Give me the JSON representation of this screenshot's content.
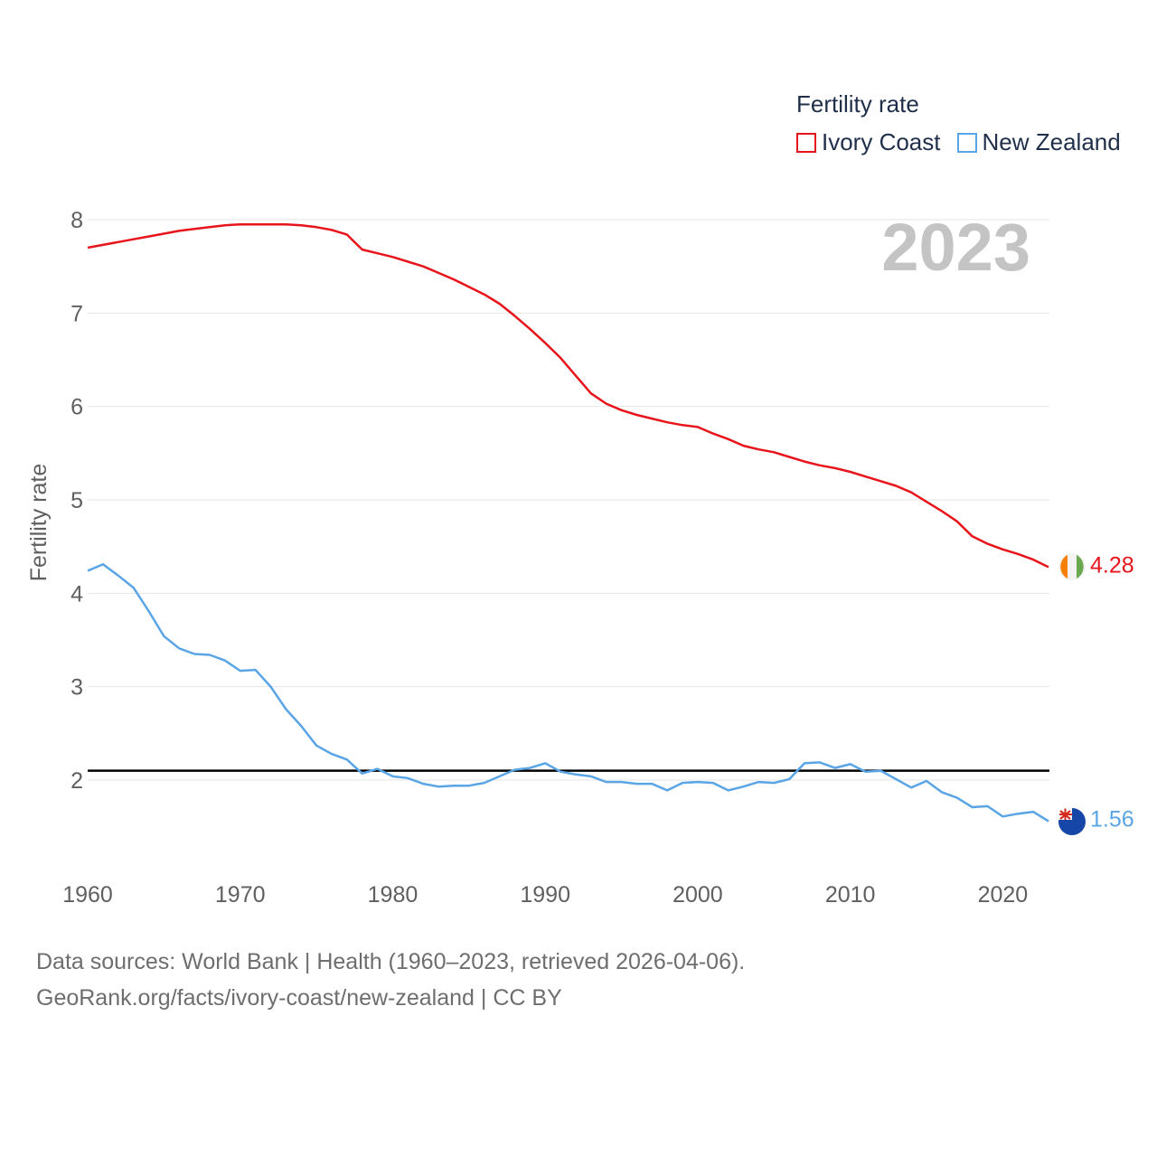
{
  "legend": {
    "title": "Fertility rate",
    "items": [
      {
        "label": "Ivory Coast",
        "color": "#e8141b"
      },
      {
        "label": "New Zealand",
        "color": "#5aa5e6"
      }
    ]
  },
  "footer": {
    "line1": "Data sources: World Bank | Health (1960–2023, retrieved 2026-04-06).",
    "line2": "GeoRank.org/facts/ivory-coast/new-zealand | CC BY"
  },
  "chart_data": {
    "type": "line",
    "title": "",
    "year_label": "2023",
    "xlabel": "",
    "ylabel": "Fertility rate",
    "xlim": [
      1960,
      2023
    ],
    "ylim": [
      1,
      8
    ],
    "x_ticks": [
      1960,
      1970,
      1980,
      1990,
      2000,
      2010,
      2020
    ],
    "y_ticks": [
      2,
      3,
      4,
      5,
      6,
      7,
      8
    ],
    "reference_line": {
      "value": 2.1
    },
    "x": [
      1960,
      1961,
      1962,
      1963,
      1964,
      1965,
      1966,
      1967,
      1968,
      1969,
      1970,
      1971,
      1972,
      1973,
      1974,
      1975,
      1976,
      1977,
      1978,
      1979,
      1980,
      1981,
      1982,
      1983,
      1984,
      1985,
      1986,
      1987,
      1988,
      1989,
      1990,
      1991,
      1992,
      1993,
      1994,
      1995,
      1996,
      1997,
      1998,
      1999,
      2000,
      2001,
      2002,
      2003,
      2004,
      2005,
      2006,
      2007,
      2008,
      2009,
      2010,
      2011,
      2012,
      2013,
      2014,
      2015,
      2016,
      2017,
      2018,
      2019,
      2020,
      2021,
      2022,
      2023
    ],
    "series": [
      {
        "name": "Ivory Coast",
        "color": "#e8141b",
        "end_label": "4.28",
        "values": [
          7.7,
          7.73,
          7.76,
          7.79,
          7.82,
          7.85,
          7.88,
          7.9,
          7.92,
          7.94,
          7.95,
          7.95,
          7.95,
          7.95,
          7.94,
          7.92,
          7.89,
          7.84,
          7.68,
          7.64,
          7.6,
          7.55,
          7.5,
          7.43,
          7.36,
          7.28,
          7.2,
          7.1,
          6.97,
          6.83,
          6.68,
          6.52,
          6.33,
          6.14,
          6.03,
          5.96,
          5.91,
          5.87,
          5.83,
          5.8,
          5.78,
          5.71,
          5.65,
          5.58,
          5.54,
          5.51,
          5.46,
          5.41,
          5.37,
          5.34,
          5.3,
          5.25,
          5.2,
          5.15,
          5.08,
          4.98,
          4.88,
          4.77,
          4.61,
          4.53,
          4.47,
          4.42,
          4.36,
          4.28
        ]
      },
      {
        "name": "New Zealand",
        "color": "#5aa5e6",
        "end_label": "1.56",
        "values": [
          4.24,
          4.31,
          4.19,
          4.06,
          3.81,
          3.54,
          3.41,
          3.35,
          3.34,
          3.28,
          3.17,
          3.18,
          3.0,
          2.76,
          2.58,
          2.37,
          2.28,
          2.22,
          2.07,
          2.12,
          2.04,
          2.02,
          1.96,
          1.93,
          1.94,
          1.94,
          1.97,
          2.04,
          2.11,
          2.13,
          2.18,
          2.09,
          2.06,
          2.04,
          1.98,
          1.98,
          1.96,
          1.96,
          1.89,
          1.97,
          1.98,
          1.97,
          1.89,
          1.93,
          1.98,
          1.97,
          2.01,
          2.18,
          2.19,
          2.13,
          2.17,
          2.09,
          2.1,
          2.01,
          1.92,
          1.99,
          1.87,
          1.81,
          1.71,
          1.72,
          1.61,
          1.64,
          1.66,
          1.56
        ]
      }
    ]
  }
}
